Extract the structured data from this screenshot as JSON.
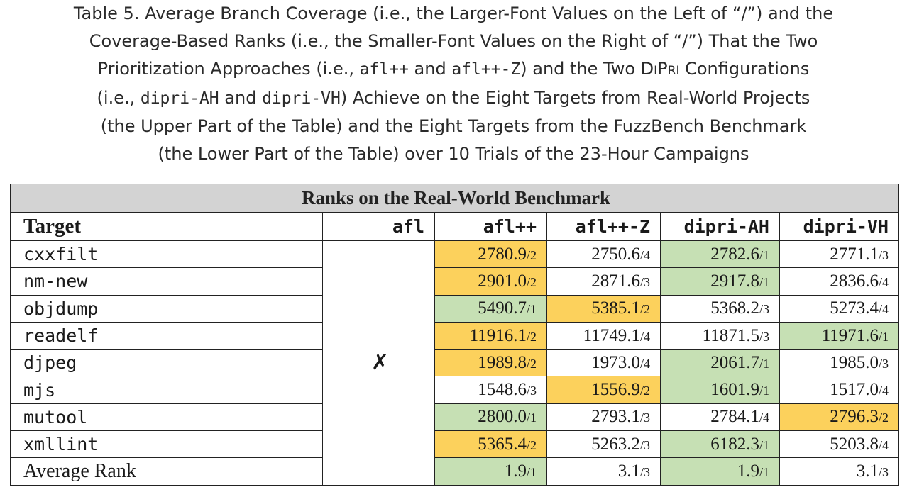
{
  "caption": {
    "lines": [
      "Table 5.  Average Branch Coverage (i.e., the Larger-Font Values on the Left of “/”) and the",
      "Coverage-Based Ranks (i.e., the Smaller-Font Values on the Right of “/”) That the Two"
    ],
    "line3": {
      "a": "Prioritization Approaches (i.e., ",
      "code1": "afl++",
      "b": " and ",
      "code2": "afl++-Z",
      "c": ") and the Two ",
      "name": "DiPri",
      "d": " Configurations"
    },
    "line4": {
      "a": "(i.e., ",
      "code1": "dipri-AH",
      "b": " and ",
      "code2": "dipri-VH",
      "c": ") Achieve on the Eight Targets from Real-World Projects"
    },
    "line5": "(the Upper Part of the Table) and the Eight Targets from the FuzzBench Benchmark",
    "line6": "(the Lower Part of the Table) over 10 Trials of the 23-Hour Campaigns"
  },
  "table": {
    "banner": "Ranks on the Real-World Benchmark",
    "headers": [
      "Target",
      "afl",
      "afl++",
      "afl++-Z",
      "dipri-AH",
      "dipri-VH"
    ],
    "afl_mark": "✗",
    "rows": [
      {
        "target": "cxxfilt",
        "cells": [
          {
            "v": "2780.9",
            "r": "/2",
            "hl": "yellow"
          },
          {
            "v": "2750.6",
            "r": "/4",
            "hl": ""
          },
          {
            "v": "2782.6",
            "r": "/1",
            "hl": "green"
          },
          {
            "v": "2771.1",
            "r": "/3",
            "hl": ""
          }
        ]
      },
      {
        "target": "nm-new",
        "cells": [
          {
            "v": "2901.0",
            "r": "/2",
            "hl": "yellow"
          },
          {
            "v": "2871.6",
            "r": "/3",
            "hl": ""
          },
          {
            "v": "2917.8",
            "r": "/1",
            "hl": "green"
          },
          {
            "v": "2836.6",
            "r": "/4",
            "hl": ""
          }
        ]
      },
      {
        "target": "objdump",
        "cells": [
          {
            "v": "5490.7",
            "r": "/1",
            "hl": "green"
          },
          {
            "v": "5385.1",
            "r": "/2",
            "hl": "yellow"
          },
          {
            "v": "5368.2",
            "r": "/3",
            "hl": ""
          },
          {
            "v": "5273.4",
            "r": "/4",
            "hl": ""
          }
        ]
      },
      {
        "target": "readelf",
        "cells": [
          {
            "v": "11916.1",
            "r": "/2",
            "hl": "yellow"
          },
          {
            "v": "11749.1",
            "r": "/4",
            "hl": ""
          },
          {
            "v": "11871.5",
            "r": "/3",
            "hl": ""
          },
          {
            "v": "11971.6",
            "r": "/1",
            "hl": "green"
          }
        ]
      },
      {
        "target": "djpeg",
        "cells": [
          {
            "v": "1989.8",
            "r": "/2",
            "hl": "yellow"
          },
          {
            "v": "1973.0",
            "r": "/4",
            "hl": ""
          },
          {
            "v": "2061.7",
            "r": "/1",
            "hl": "green"
          },
          {
            "v": "1985.0",
            "r": "/3",
            "hl": ""
          }
        ]
      },
      {
        "target": "mjs",
        "cells": [
          {
            "v": "1548.6",
            "r": "/3",
            "hl": ""
          },
          {
            "v": "1556.9",
            "r": "/2",
            "hl": "yellow"
          },
          {
            "v": "1601.9",
            "r": "/1",
            "hl": "green"
          },
          {
            "v": "1517.0",
            "r": "/4",
            "hl": ""
          }
        ]
      },
      {
        "target": "mutool",
        "cells": [
          {
            "v": "2800.0",
            "r": "/1",
            "hl": "green"
          },
          {
            "v": "2793.1",
            "r": "/3",
            "hl": ""
          },
          {
            "v": "2784.1",
            "r": "/4",
            "hl": ""
          },
          {
            "v": "2796.3",
            "r": "/2",
            "hl": "yellow"
          }
        ]
      },
      {
        "target": "xmllint",
        "cells": [
          {
            "v": "5365.4",
            "r": "/2",
            "hl": "yellow"
          },
          {
            "v": "5263.2",
            "r": "/3",
            "hl": ""
          },
          {
            "v": "6182.3",
            "r": "/1",
            "hl": "green"
          },
          {
            "v": "5203.8",
            "r": "/4",
            "hl": ""
          }
        ]
      },
      {
        "target": "Average Rank",
        "cells": [
          {
            "v": "1.9",
            "r": "/1",
            "hl": "green"
          },
          {
            "v": "3.1",
            "r": "/3",
            "hl": ""
          },
          {
            "v": "1.9",
            "r": "/1",
            "hl": "green"
          },
          {
            "v": "3.1",
            "r": "/3",
            "hl": ""
          }
        ]
      }
    ]
  },
  "colors": {
    "yellow": "#fcd15c",
    "green": "#c6e0b4",
    "banner": "#d3d3d3"
  }
}
